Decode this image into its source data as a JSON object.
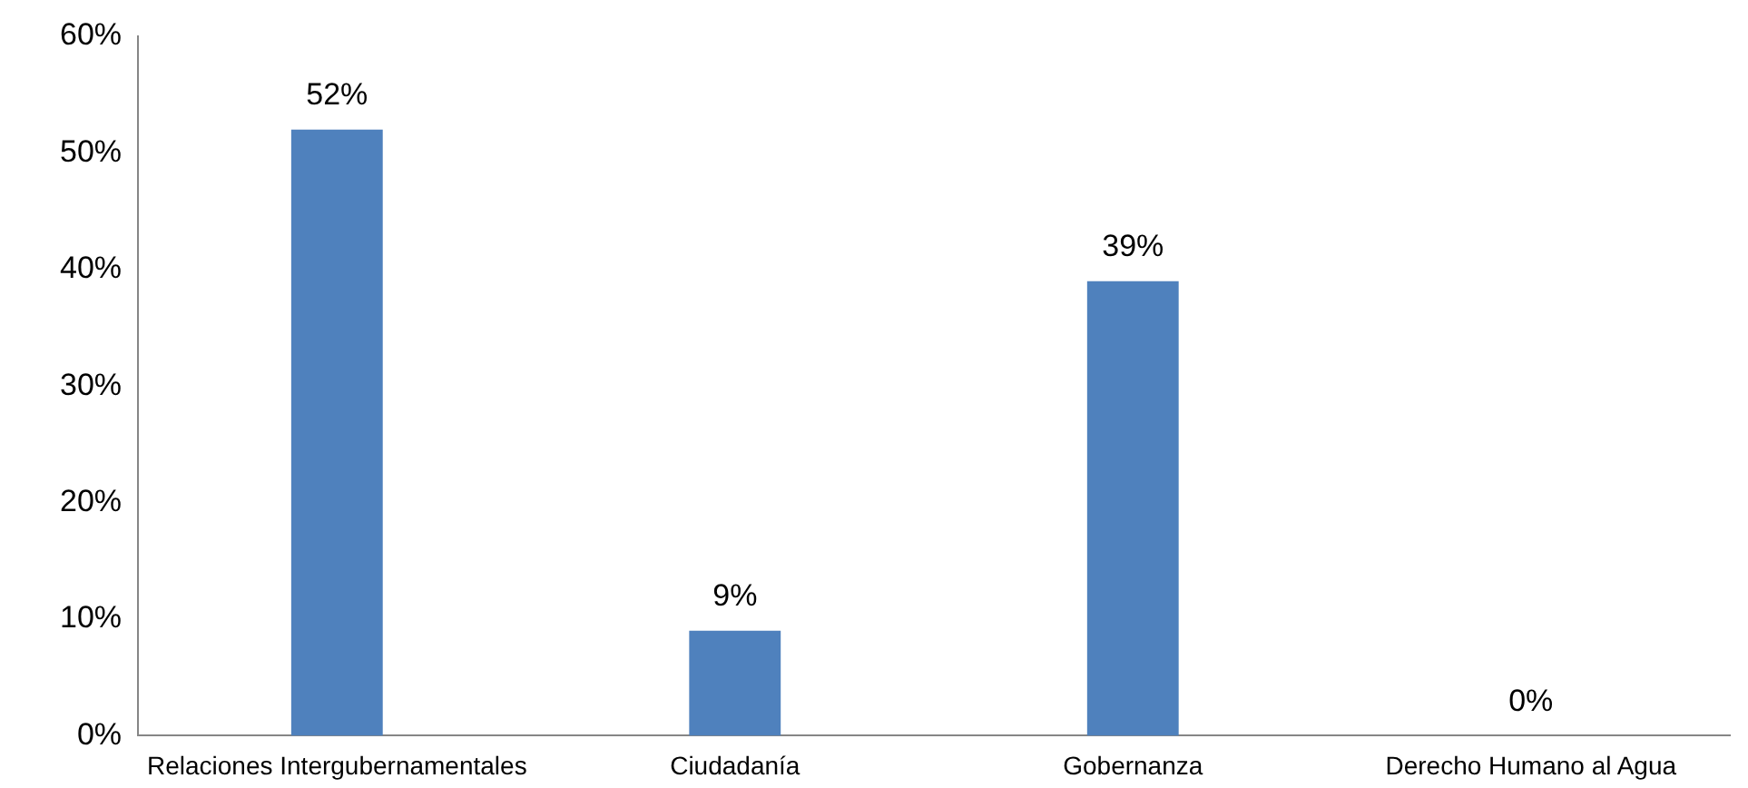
{
  "chart_data": {
    "type": "bar",
    "categories": [
      "Relaciones Intergubernamentales",
      "Ciudadanía",
      "Gobernanza",
      "Derecho Humano al Agua"
    ],
    "values": [
      52,
      9,
      39,
      0
    ],
    "color": "#4f81bd",
    "value_labels": [
      "52%",
      "9%",
      "39%",
      "0%"
    ],
    "ylim": [
      0,
      60
    ],
    "yticks": [
      {
        "value": 0,
        "label": "0%"
      },
      {
        "value": 10,
        "label": "10%"
      },
      {
        "value": 20,
        "label": "20%"
      },
      {
        "value": 30,
        "label": "30%"
      },
      {
        "value": 40,
        "label": "40%"
      },
      {
        "value": 50,
        "label": "50%"
      },
      {
        "value": 60,
        "label": "60%"
      }
    ],
    "grid": false,
    "legend": false
  }
}
